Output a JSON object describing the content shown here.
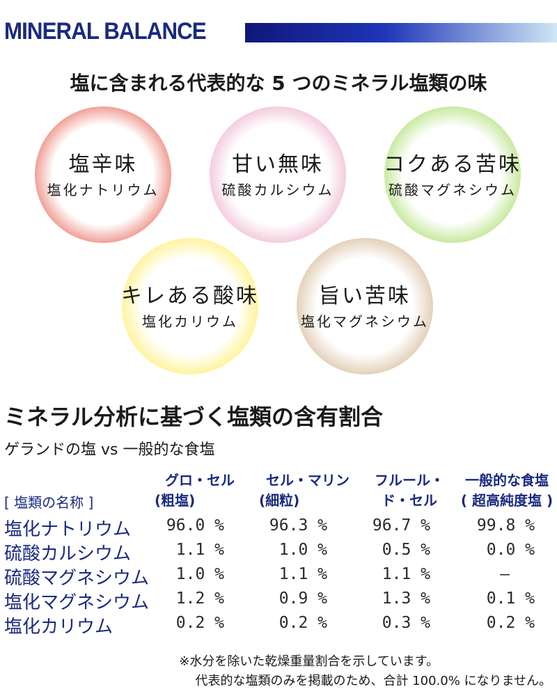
{
  "header": {
    "title": "MINERAL BALANCE"
  },
  "taste_section": {
    "title": "塩に含まれる代表的な 5 つのミネラル塩類の味",
    "circles": [
      {
        "taste": "塩辛味",
        "mineral": "塩化ナトリウム",
        "color": "#d82a22"
      },
      {
        "taste": "甘い無味",
        "mineral": "硫酸カルシウム",
        "color": "#e38db6"
      },
      {
        "taste": "コクある苦味",
        "mineral": "硫酸マグネシウム",
        "color": "#7cc540"
      },
      {
        "taste": "キレある酸味",
        "mineral": "塩化カリウム",
        "color": "#f6e125"
      },
      {
        "taste": "旨い苦味",
        "mineral": "塩化マグネシウム",
        "color": "#b49270"
      }
    ]
  },
  "analysis_section": {
    "title": "ミネラル分析に基づく塩類の含有割合",
    "comparison": "ゲランドの塩 vs 一般的な食塩",
    "name_header": "[ 塩類の名称 ]",
    "columns": [
      {
        "line1": "グロ・セル",
        "line2": "(粗塩)"
      },
      {
        "line1": "セル・マリン",
        "line2": "(細粒)"
      },
      {
        "line1": "フルール・",
        "line2": "ド・セル"
      },
      {
        "line1": "一般的な食塩",
        "line2": "( 超高純度塩 )"
      }
    ],
    "rows": [
      {
        "name": "塩化ナトリウム",
        "values": [
          "96.0 %",
          "96.3 %",
          "96.7 %",
          "99.8 %"
        ]
      },
      {
        "name": "硫酸カルシウム",
        "values": [
          "1.1 %",
          "1.0 %",
          "0.5 %",
          "0.0 %"
        ]
      },
      {
        "name": "硫酸マグネシウム",
        "values": [
          "1.0 %",
          "1.1 %",
          "1.1 %",
          "—"
        ]
      },
      {
        "name": "塩化マグネシウム",
        "values": [
          "1.2 %",
          "0.9 %",
          "1.3 %",
          "0.1 %"
        ]
      },
      {
        "name": "塩化カリウム",
        "values": [
          "0.2 %",
          "0.2 %",
          "0.3 %",
          "0.2 %"
        ]
      }
    ]
  },
  "footnotes": [
    "※水分を除いた乾燥重量割合を示しています。",
    "代表的な塩類のみを掲載のため、合計 100.0% になりません。"
  ]
}
